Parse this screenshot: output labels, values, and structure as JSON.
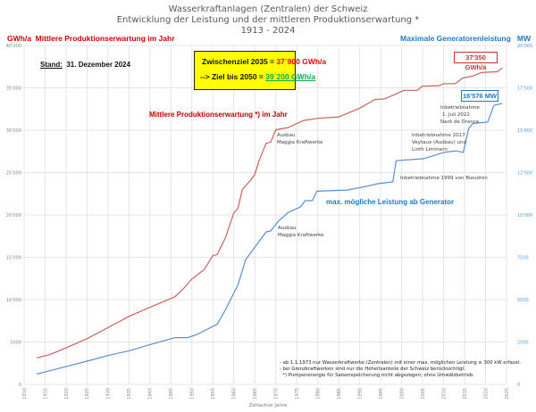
{
  "title_lines": [
    "Wasserkraftanlagen (Zentralen) der Schweiz",
    "Entwicklung der Leistung und der mittleren Produktionserwartung *",
    "1913 - 2024"
  ],
  "left_header": {
    "unit": "GWh/a",
    "label": "Mittlere Produktionserwartung im Jahr"
  },
  "right_header": {
    "label": "Maximale Generatorenleistung",
    "unit": "MW"
  },
  "stand": {
    "label": "Stand:",
    "value": "31. Dezember 2024"
  },
  "goal_box": {
    "line1_prefix": "Zwischenziel 2035 = ",
    "line1_value": "37`900  GWh/a",
    "line2_prefix": "--> Ziel bis 2050 = ",
    "line2_value": "39`200  GWh/a",
    "background": "#ffff00",
    "value1_color": "#ff0000",
    "value2_color": "#00b050"
  },
  "end_labels": {
    "production": "37'350 GWh/a",
    "power": "16'576 MW"
  },
  "series_labels": {
    "production": "Mittlere Produktionserwartung *)  im Jahr",
    "power": "max. mögliche Leistung ab Generator"
  },
  "annotations": {
    "maggia_prod": [
      "Ausbau",
      "Maggia Kraftwerke"
    ],
    "maggia_power": [
      "Ausbau",
      "Maggia Kraftwerke"
    ],
    "bieudron": "Inbetriebnahme 1999 von Bieudron",
    "veytaux": [
      "Inbetriebnahme 2017",
      "Veytaux (Ausbau) und",
      "Linth Limmern"
    ],
    "nant": [
      "Inbetriebnahme",
      "1. Juli 2022",
      "Nant de Drance"
    ]
  },
  "footnote": [
    "- ab 1.1.1973 nur Wasserkraftwerke (Zentralen) mit einer max. möglichen Leistung ≥ 300 kW erfasst.",
    "- bei Grenzkraftwerken sind nur die Hoheitsanteile der Schweiz berücksichtigt.",
    "  *) Pumpenenergie für Saisonspeicherung nicht abgezogen; ohne Umwälzbetrieb."
  ],
  "chart_data": {
    "type": "line",
    "title": "Wasserkraftanlagen (Zentralen) der Schweiz – Entwicklung der Leistung und der mittleren Produktionserwartung * 1913 - 2024",
    "xlabel": "Zeitachse Jahre",
    "ylabel_left": "GWh/a  Mittlere Produktionserwartung im Jahr",
    "ylabel_right": "Maximale Generatorenleistung  MW",
    "xlim": [
      1910,
      2025
    ],
    "ylim_left": [
      0,
      40000
    ],
    "ylim_right": [
      0,
      20000
    ],
    "x_ticks": [
      1910,
      1915,
      1920,
      1925,
      1930,
      1935,
      1940,
      1945,
      1950,
      1955,
      1960,
      1965,
      1970,
      1975,
      1980,
      1985,
      1990,
      1995,
      2000,
      2005,
      2010,
      2015,
      2020,
      2025
    ],
    "y_ticks_left": [
      "0",
      "5000",
      "10'000",
      "15'000",
      "20'000",
      "25'000",
      "30'000",
      "35'000",
      "40'000"
    ],
    "y_ticks_right": [
      "0",
      "2500",
      "5000",
      "7500",
      "10'000",
      "12'500",
      "15'000",
      "17'500",
      "20'000"
    ],
    "grid": true,
    "series": [
      {
        "name": "Mittlere Produktionserwartung *)  im Jahr",
        "axis": "left",
        "color": "#d0605c",
        "x": [
          1913,
          1916,
          1920,
          1925,
          1930,
          1935,
          1940,
          1946,
          1948,
          1950,
          1951,
          1953,
          1955,
          1956,
          1958,
          1960,
          1961,
          1962,
          1964,
          1965,
          1966,
          1967.7,
          1968.8,
          1970,
          1973,
          1976.6,
          1980,
          1985,
          1988.7,
          1990,
          1993.6,
          1996,
          2000.6,
          2003.8,
          2004.9,
          2008.9,
          2010,
          2012.8,
          2014.5,
          2017,
          2019,
          2022.8,
          2024
        ],
        "y": [
          3130,
          3500,
          4300,
          5390,
          6700,
          8020,
          9100,
          10350,
          11300,
          12430,
          12800,
          13600,
          15200,
          15300,
          17300,
          20250,
          20800,
          23000,
          24100,
          24800,
          26400,
          28450,
          28600,
          30050,
          30320,
          31150,
          31400,
          31570,
          32330,
          32600,
          33620,
          33700,
          34700,
          34700,
          35200,
          35250,
          35500,
          35500,
          36150,
          36400,
          36800,
          36900,
          37350
        ]
      },
      {
        "name": "max. mögliche Leistung ab Generator",
        "axis": "right",
        "color": "#5b8fd0",
        "x": [
          1913,
          1916,
          1920,
          1925,
          1930,
          1935.5,
          1940,
          1946,
          1949,
          1951,
          1956,
          1958,
          1961,
          1962.8,
          1965,
          1967.7,
          1968.8,
          1970.6,
          1973,
          1975.9,
          1977,
          1978.7,
          1979.8,
          1987,
          1991.5,
          1994.3,
          1997.9,
          1998.7,
          2005.3,
          2010,
          2013,
          2014.7,
          2016,
          2017,
          2020.5,
          2022,
          2024
        ],
        "y": [
          610,
          800,
          1050,
          1370,
          1700,
          2010,
          2350,
          2760,
          2760,
          2920,
          3540,
          4400,
          5890,
          7350,
          8100,
          9000,
          9050,
          9630,
          10150,
          10480,
          10840,
          10840,
          11400,
          11470,
          11680,
          11840,
          11950,
          13200,
          13320,
          13690,
          13780,
          13690,
          15100,
          15400,
          15480,
          16470,
          16576
        ]
      }
    ]
  }
}
